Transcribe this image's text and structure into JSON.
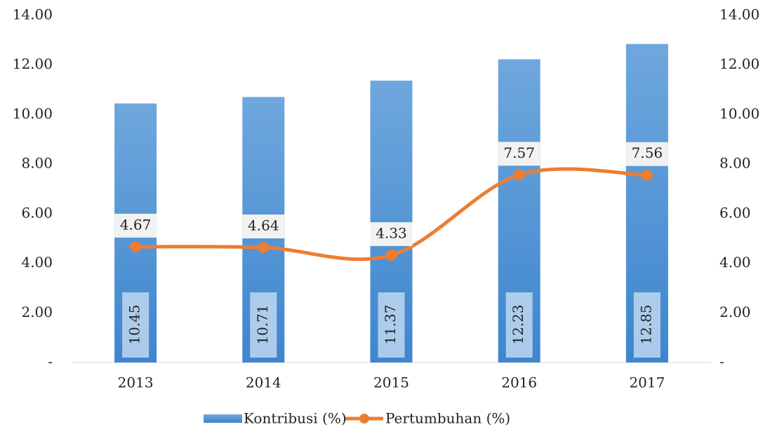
{
  "chart_data": {
    "type": "combo",
    "categories": [
      "2013",
      "2014",
      "2015",
      "2016",
      "2017"
    ],
    "series": [
      {
        "name": "Kontribusi (%)",
        "type": "bar",
        "color": "#5b9bd5",
        "values": [
          10.45,
          10.71,
          11.37,
          12.23,
          12.85
        ]
      },
      {
        "name": "Pertumbuhan (%)",
        "type": "line",
        "axis": "y2",
        "color": "#ed7d31",
        "values": [
          4.67,
          4.64,
          4.33,
          7.57,
          7.56
        ]
      }
    ],
    "ylim": [
      0,
      14
    ],
    "yticks": [
      {
        "value": 0,
        "label": "-"
      },
      {
        "value": 2,
        "label": "2.00"
      },
      {
        "value": 4,
        "label": "4.00"
      },
      {
        "value": 6,
        "label": "6.00"
      },
      {
        "value": 8,
        "label": "8.00"
      },
      {
        "value": 10,
        "label": "10.00"
      },
      {
        "value": 12,
        "label": "12.00"
      },
      {
        "value": 14,
        "label": "14.00"
      }
    ],
    "y2lim": [
      0,
      14
    ],
    "y2ticks": [
      {
        "value": 0,
        "label": "-"
      },
      {
        "value": 2,
        "label": "2.00"
      },
      {
        "value": 4,
        "label": "4.00"
      },
      {
        "value": 6,
        "label": "6.00"
      },
      {
        "value": 8,
        "label": "8.00"
      },
      {
        "value": 10,
        "label": "10.00"
      },
      {
        "value": 12,
        "label": "12.00"
      },
      {
        "value": 14,
        "label": "14.00"
      }
    ],
    "legend": "bottom"
  }
}
